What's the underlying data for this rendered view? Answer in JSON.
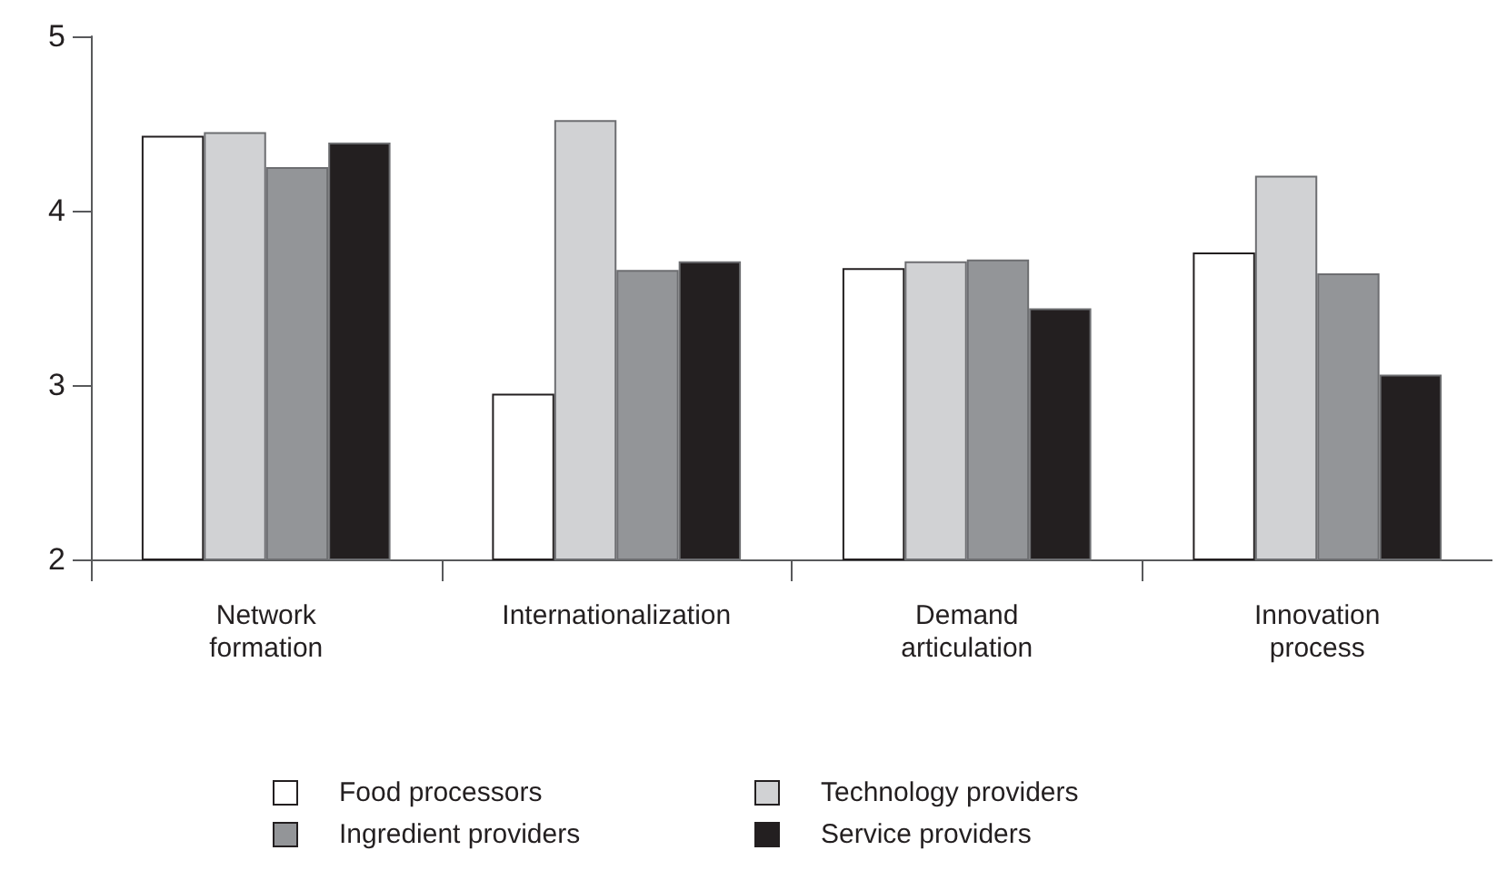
{
  "chart_data": {
    "type": "bar",
    "categories": [
      "Network formation",
      "Internationalization",
      "Demand articulation",
      "Innovation process"
    ],
    "series": [
      {
        "name": "Food processors",
        "color": "#ffffff",
        "values": [
          4.43,
          2.95,
          3.67,
          3.76
        ]
      },
      {
        "name": "Technology providers",
        "color": "#d1d2d4",
        "values": [
          4.45,
          4.52,
          3.71,
          4.2
        ]
      },
      {
        "name": "Ingredient providers",
        "color": "#939598",
        "values": [
          4.25,
          3.66,
          3.72,
          3.64
        ]
      },
      {
        "name": "Service providers",
        "color": "#231f20",
        "values": [
          4.39,
          3.71,
          3.44,
          3.06
        ]
      }
    ],
    "ylim": [
      2,
      5
    ],
    "yticks": [
      2,
      3,
      4,
      5
    ],
    "grid": false,
    "legend": "bottom"
  }
}
